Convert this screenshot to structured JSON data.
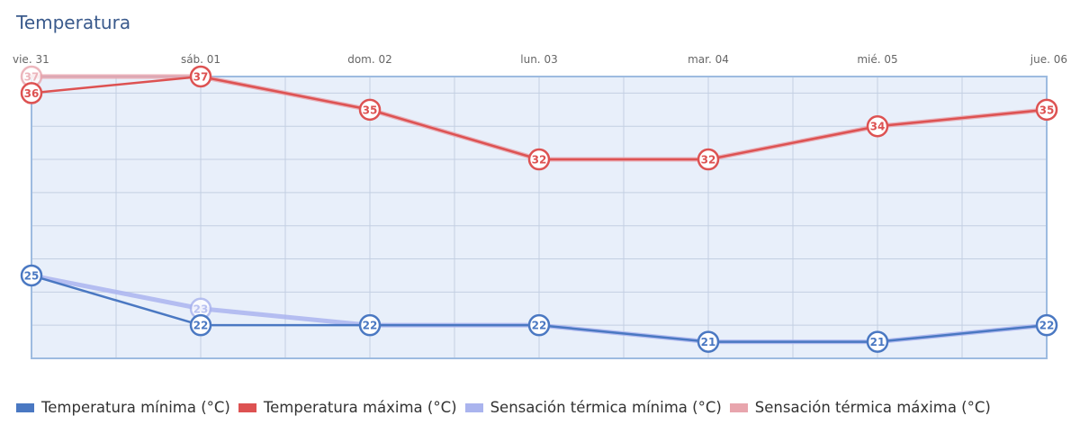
{
  "title": "Temperatura",
  "chart_data": {
    "type": "line",
    "title": "Temperatura",
    "xlabel": "",
    "ylabel": "",
    "categories": [
      "vie. 31",
      "sáb. 01",
      "dom. 02",
      "lun. 03",
      "mar. 04",
      "mié. 05",
      "jue. 06"
    ],
    "ylim": [
      20,
      37
    ],
    "grid": true,
    "legend_position": "bottom",
    "series": [
      {
        "name": "Sensación térmica mínima (°C)",
        "values": [
          25,
          23,
          22,
          22,
          21,
          21,
          22
        ],
        "color": "#aab4ee",
        "labelled": [
          false,
          true,
          false,
          false,
          false,
          false,
          false
        ]
      },
      {
        "name": "Sensación térmica máxima (°C)",
        "values": [
          37,
          37,
          35,
          32,
          32,
          34,
          35
        ],
        "color": "#e8a5ad",
        "labelled": [
          true,
          false,
          false,
          false,
          false,
          false,
          false
        ]
      },
      {
        "name": "Temperatura mínima (°C)",
        "values": [
          25,
          22,
          22,
          22,
          21,
          21,
          22
        ],
        "color": "#4a78c2",
        "labelled": [
          true,
          true,
          true,
          true,
          true,
          true,
          true
        ]
      },
      {
        "name": "Temperatura máxima (°C)",
        "values": [
          36,
          37,
          35,
          32,
          32,
          34,
          35
        ],
        "color": "#dd5252",
        "labelled": [
          true,
          true,
          true,
          true,
          true,
          true,
          true
        ]
      }
    ],
    "legend": [
      {
        "name": "Temperatura mínima (°C)",
        "color": "#4a78c2"
      },
      {
        "name": "Temperatura máxima (°C)",
        "color": "#dd5252"
      },
      {
        "name": "Sensación térmica mínima (°C)",
        "color": "#aab4ee"
      },
      {
        "name": "Sensación térmica máxima (°C)",
        "color": "#e8a5ad"
      }
    ]
  }
}
